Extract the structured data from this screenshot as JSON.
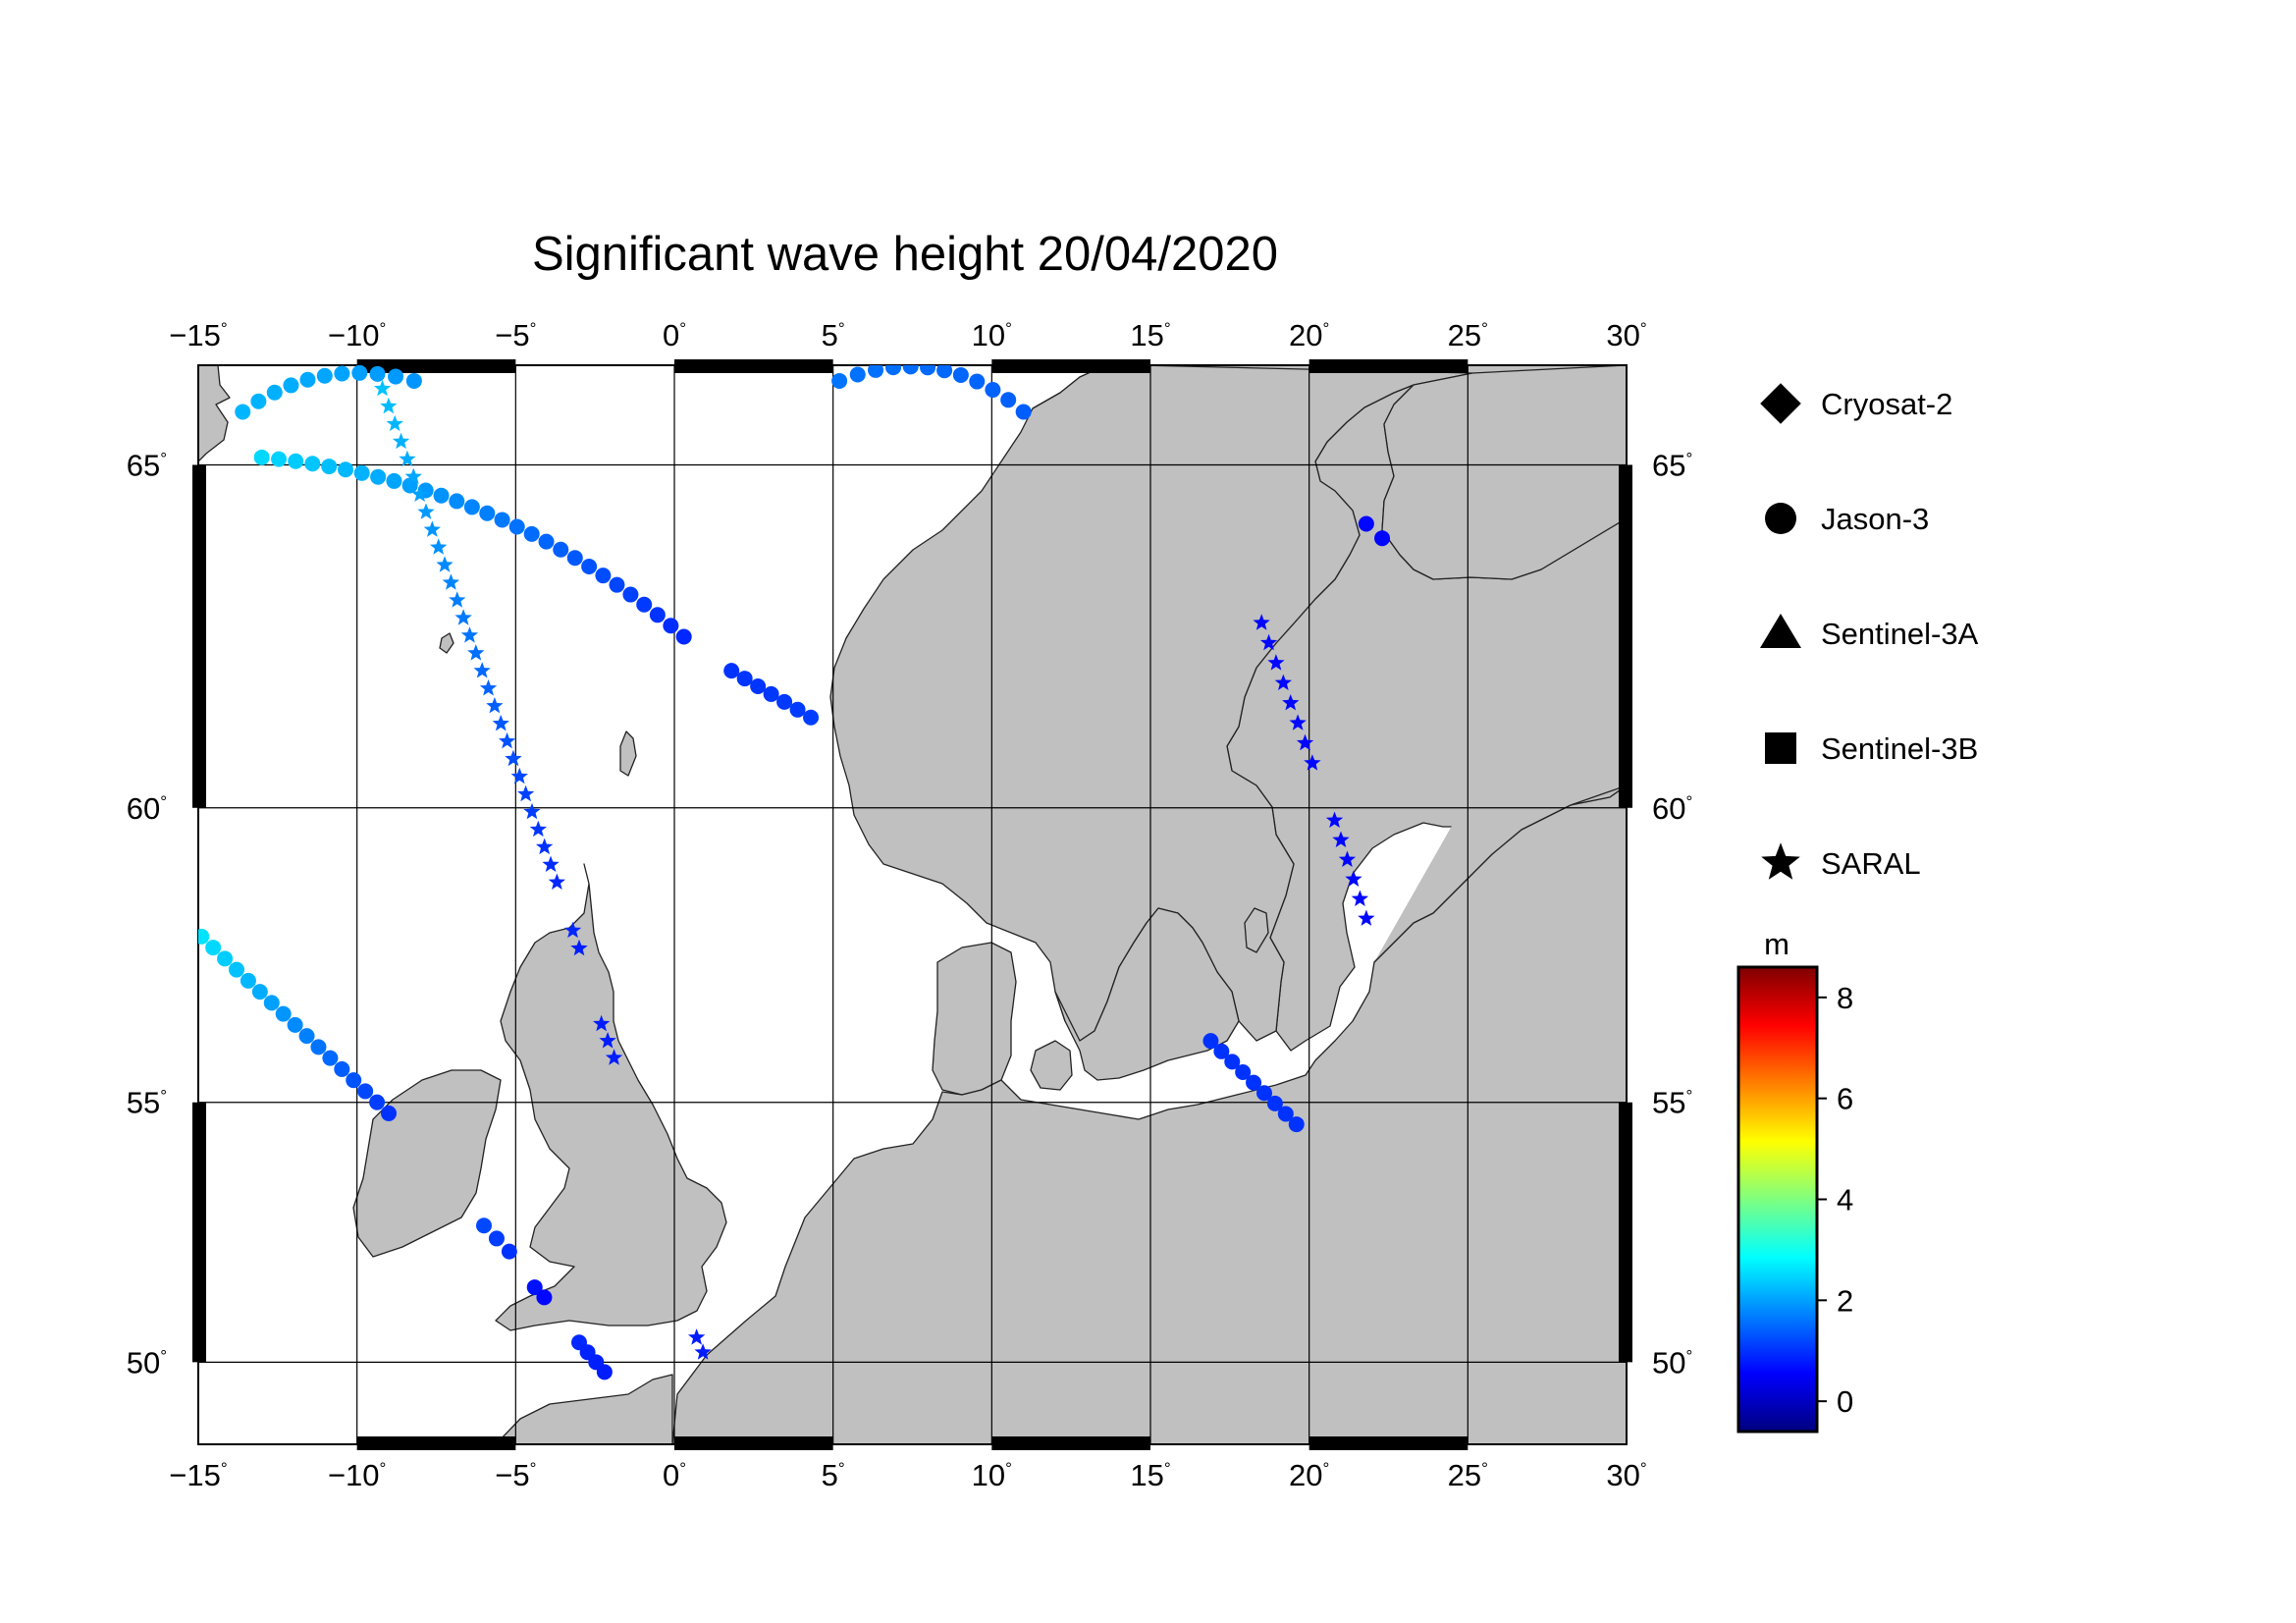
{
  "title": "Significant wave height 20/04/2020",
  "map": {
    "lon_range": [
      -15,
      30
    ],
    "lat_range": [
      48.3,
      66.3
    ],
    "lon_ticks": [
      -15,
      -10,
      -5,
      0,
      5,
      10,
      15,
      20,
      25,
      30
    ],
    "lat_ticks": [
      50,
      55,
      60,
      65
    ],
    "degree_symbol": "°",
    "land_color": "#c0c0c0",
    "sea_color": "#ffffff",
    "grid": true
  },
  "legend": {
    "items": [
      {
        "label": "Cryosat-2",
        "marker": "diamond"
      },
      {
        "label": "Jason-3",
        "marker": "circle"
      },
      {
        "label": "Sentinel-3A",
        "marker": "triangle"
      },
      {
        "label": "Sentinel-3B",
        "marker": "square"
      },
      {
        "label": "SARAL",
        "marker": "star"
      }
    ]
  },
  "colorbar": {
    "unit": "m",
    "range": [
      -0.6,
      8.6
    ],
    "ticks": [
      0,
      2,
      4,
      6,
      8
    ],
    "colors": [
      "#00007f",
      "#0000ff",
      "#007fff",
      "#00ffff",
      "#7fff7f",
      "#ffff00",
      "#ff7f00",
      "#ff0000",
      "#7f0000"
    ]
  },
  "chart_data": {
    "type": "scatter",
    "x_unit": "longitude (°E)",
    "y_unit": "latitude (°N)",
    "value_unit": "m",
    "tracks": [
      {
        "satellite": "Jason-3",
        "marker": "circle",
        "from": [
          -13.6,
          65.7
        ],
        "to": [
          -8.2,
          66.1
        ],
        "n": 11,
        "swh": [
          2.2,
          1.9
        ],
        "curve": 0.12
      },
      {
        "satellite": "Jason-3",
        "marker": "circle",
        "from": [
          5.2,
          66.1
        ],
        "to": [
          11.0,
          65.7
        ],
        "n": 12,
        "swh": [
          1.6,
          1.4
        ],
        "curve": 0.15
      },
      {
        "satellite": "Jason-3",
        "marker": "circle",
        "from": [
          -13.0,
          65.1
        ],
        "to": [
          0.3,
          62.6
        ],
        "n": 29,
        "swh": [
          2.5,
          0.9
        ],
        "curve": 0.08
      },
      {
        "satellite": "Jason-3",
        "marker": "circle",
        "from": [
          1.8,
          62.1
        ],
        "to": [
          4.3,
          61.4
        ],
        "n": 7,
        "swh": [
          1.0,
          1.1
        ],
        "curve": 0
      },
      {
        "satellite": "Jason-3",
        "marker": "circle",
        "from": [
          -14.9,
          57.9
        ],
        "to": [
          -9.0,
          54.8
        ],
        "n": 17,
        "swh": [
          2.6,
          1.0
        ],
        "curve": 0
      },
      {
        "satellite": "Jason-3",
        "marker": "circle",
        "from": [
          -6.0,
          52.7
        ],
        "to": [
          -5.2,
          52.2
        ],
        "n": 3,
        "swh": [
          1.2,
          1.0
        ],
        "curve": 0
      },
      {
        "satellite": "Jason-3",
        "marker": "circle",
        "from": [
          -4.4,
          51.5
        ],
        "to": [
          -4.1,
          51.3
        ],
        "n": 2,
        "swh": [
          0.7,
          0.6
        ],
        "curve": 0
      },
      {
        "satellite": "Jason-3",
        "marker": "circle",
        "from": [
          -3.0,
          50.4
        ],
        "to": [
          -2.2,
          49.8
        ],
        "n": 4,
        "swh": [
          0.9,
          0.8
        ],
        "curve": 0
      },
      {
        "satellite": "Jason-3",
        "marker": "circle",
        "from": [
          16.9,
          56.1
        ],
        "to": [
          19.6,
          54.6
        ],
        "n": 9,
        "swh": [
          1.0,
          1.0
        ],
        "curve": 0
      },
      {
        "satellite": "Jason-3",
        "marker": "circle",
        "from": [
          21.8,
          64.2
        ],
        "to": [
          22.3,
          64.0
        ],
        "n": 2,
        "swh": [
          0.6,
          0.6
        ],
        "curve": 0
      },
      {
        "satellite": "SARAL",
        "marker": "star",
        "from": [
          -9.2,
          66.0
        ],
        "to": [
          -3.7,
          58.8
        ],
        "n": 29,
        "swh": [
          2.3,
          0.9
        ],
        "curve": 0
      },
      {
        "satellite": "SARAL",
        "marker": "star",
        "from": [
          -3.2,
          58.0
        ],
        "to": [
          -3.0,
          57.7
        ],
        "n": 2,
        "swh": [
          0.9,
          0.8
        ],
        "curve": 0
      },
      {
        "satellite": "SARAL",
        "marker": "star",
        "from": [
          -2.3,
          56.4
        ],
        "to": [
          -1.9,
          55.8
        ],
        "n": 3,
        "swh": [
          0.8,
          0.8
        ],
        "curve": 0
      },
      {
        "satellite": "SARAL",
        "marker": "star",
        "from": [
          0.7,
          50.5
        ],
        "to": [
          0.9,
          50.2
        ],
        "n": 2,
        "swh": [
          0.8,
          0.8
        ],
        "curve": 0
      },
      {
        "satellite": "SARAL",
        "marker": "star",
        "from": [
          18.5,
          62.8
        ],
        "to": [
          20.1,
          60.7
        ],
        "n": 8,
        "swh": [
          0.6,
          0.6
        ],
        "curve": 0
      },
      {
        "satellite": "SARAL",
        "marker": "star",
        "from": [
          20.8,
          59.8
        ],
        "to": [
          21.8,
          58.2
        ],
        "n": 6,
        "swh": [
          0.6,
          0.6
        ],
        "curve": 0
      }
    ]
  }
}
